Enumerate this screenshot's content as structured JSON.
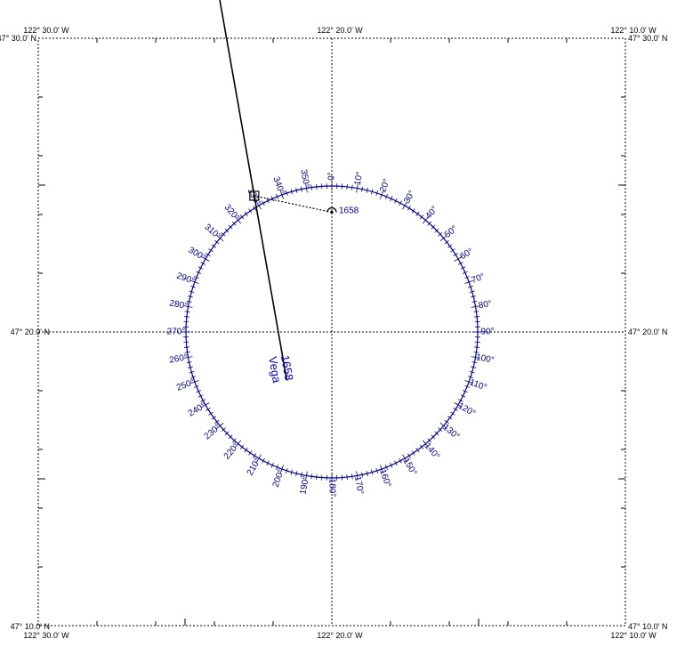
{
  "chart": {
    "top_left_lon": "122° 30.0' W",
    "top_mid_lon": "122° 20.0' W",
    "top_right_lon": "122° 10.0' W",
    "bottom_left_lon": "122° 30.0' W",
    "bottom_mid_lon": "122° 20.0' W",
    "bottom_right_lon": "122° 10.0' W",
    "left_top_lat": "47° 30.0' N",
    "left_mid_lat": "47° 20.0' N",
    "left_bottom_lat": "47° 10.0' N",
    "right_top_lat": "47° 30.0' N",
    "right_mid_lat": "47° 20.0' N",
    "right_bottom_lat": "47° 10.0' N"
  },
  "compass": {
    "labels": [
      "0°",
      "10°",
      "20°",
      "30°",
      "40°",
      "50°",
      "60°",
      "70°",
      "80°",
      "90°",
      "100°",
      "110°",
      "120°",
      "130°",
      "140°",
      "150°",
      "160°",
      "170°",
      "180°",
      "190°",
      "200°",
      "210°",
      "220°",
      "230°",
      "240°",
      "250°",
      "260°",
      "270°",
      "280°",
      "290°",
      "300°",
      "310°",
      "320°",
      "330°",
      "340°",
      "350°"
    ],
    "tick_step_deg": 2
  },
  "sight": {
    "time": "1658",
    "body": "Vega",
    "ap_label": "1658",
    "ap_bearing_deg": 0,
    "ap_distance_fraction_of_radius": 0.82,
    "lop_azimuth_deg": 350,
    "intercept_bearing_deg": 282,
    "intercept_nm": 2.7
  },
  "colors": {
    "grid": "#000000",
    "compass": "#00008b",
    "lop": "#000000",
    "label": "#0000cc"
  }
}
